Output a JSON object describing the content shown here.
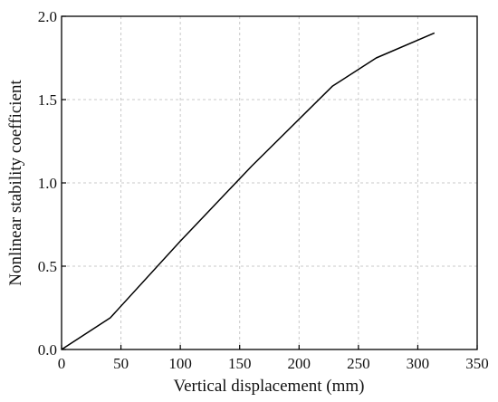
{
  "chart_data": {
    "type": "line",
    "title": "",
    "xlabel": "Vertical displacement (mm)",
    "ylabel": "Nonlinear stability coefficient",
    "xlim": [
      0,
      350
    ],
    "ylim": [
      0,
      2.0
    ],
    "xticks": [
      "0",
      "50",
      "100",
      "150",
      "200",
      "250",
      "300",
      "350"
    ],
    "yticks": [
      "0.0",
      "0.5",
      "1.0",
      "1.5",
      "2.0"
    ],
    "grid": true,
    "legend": "none",
    "series": [
      {
        "color": "#000000",
        "x": [
          0,
          41,
          100,
          160,
          228,
          265,
          314
        ],
        "y": [
          0,
          0.19,
          0.65,
          1.1,
          1.58,
          1.75,
          1.9
        ]
      }
    ]
  }
}
